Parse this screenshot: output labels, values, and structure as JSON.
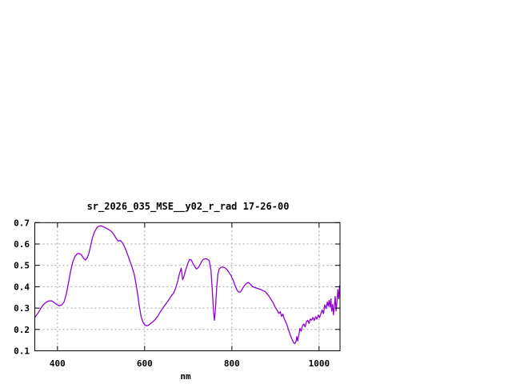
{
  "chart_data": {
    "type": "line",
    "title": "sr_2026_035_MSE__y02_r_rad 17-26-00",
    "xlabel": "nm",
    "ylabel": "",
    "xlim": [
      348,
      1048
    ],
    "ylim": [
      0.1,
      0.7
    ],
    "x_ticks": [
      400,
      600,
      800,
      1000
    ],
    "y_ticks": [
      0.1,
      0.2,
      0.3,
      0.4,
      0.5,
      0.6,
      0.7
    ],
    "grid": true,
    "legend": "none",
    "line_color": "#9400d3",
    "grid_color": "#a0a0a0",
    "background_color": "#ffffff",
    "series": [
      {
        "name": "sr_2026_035_MSE__y02_r_rad",
        "points": [
          [
            349,
            0.258
          ],
          [
            355,
            0.275
          ],
          [
            361,
            0.296
          ],
          [
            367,
            0.315
          ],
          [
            373,
            0.326
          ],
          [
            379,
            0.333
          ],
          [
            386,
            0.334
          ],
          [
            392,
            0.327
          ],
          [
            398,
            0.317
          ],
          [
            404,
            0.311
          ],
          [
            410,
            0.315
          ],
          [
            415,
            0.328
          ],
          [
            420,
            0.362
          ],
          [
            425,
            0.416
          ],
          [
            430,
            0.472
          ],
          [
            435,
            0.515
          ],
          [
            440,
            0.541
          ],
          [
            445,
            0.554
          ],
          [
            450,
            0.556
          ],
          [
            455,
            0.549
          ],
          [
            460,
            0.533
          ],
          [
            464,
            0.525
          ],
          [
            468,
            0.534
          ],
          [
            472,
            0.556
          ],
          [
            476,
            0.592
          ],
          [
            480,
            0.627
          ],
          [
            485,
            0.657
          ],
          [
            490,
            0.675
          ],
          [
            495,
            0.684
          ],
          [
            500,
            0.685
          ],
          [
            505,
            0.681
          ],
          [
            511,
            0.675
          ],
          [
            517,
            0.668
          ],
          [
            523,
            0.66
          ],
          [
            529,
            0.646
          ],
          [
            534,
            0.628
          ],
          [
            539,
            0.614
          ],
          [
            544,
            0.617
          ],
          [
            549,
            0.606
          ],
          [
            554,
            0.586
          ],
          [
            560,
            0.556
          ],
          [
            566,
            0.521
          ],
          [
            571,
            0.493
          ],
          [
            576,
            0.458
          ],
          [
            580,
            0.415
          ],
          [
            584,
            0.364
          ],
          [
            588,
            0.305
          ],
          [
            592,
            0.258
          ],
          [
            596,
            0.235
          ],
          [
            600,
            0.222
          ],
          [
            604,
            0.217
          ],
          [
            608,
            0.219
          ],
          [
            613,
            0.227
          ],
          [
            618,
            0.235
          ],
          [
            624,
            0.246
          ],
          [
            630,
            0.262
          ],
          [
            636,
            0.283
          ],
          [
            642,
            0.301
          ],
          [
            648,
            0.318
          ],
          [
            654,
            0.335
          ],
          [
            660,
            0.354
          ],
          [
            666,
            0.369
          ],
          [
            671,
            0.392
          ],
          [
            676,
            0.428
          ],
          [
            680,
            0.462
          ],
          [
            684,
            0.487
          ],
          [
            687,
            0.433
          ],
          [
            690,
            0.448
          ],
          [
            694,
            0.478
          ],
          [
            699,
            0.509
          ],
          [
            703,
            0.528
          ],
          [
            707,
            0.525
          ],
          [
            711,
            0.508
          ],
          [
            715,
            0.494
          ],
          [
            719,
            0.483
          ],
          [
            723,
            0.489
          ],
          [
            727,
            0.503
          ],
          [
            731,
            0.519
          ],
          [
            735,
            0.529
          ],
          [
            740,
            0.531
          ],
          [
            744,
            0.529
          ],
          [
            748,
            0.522
          ],
          [
            752,
            0.477
          ],
          [
            755,
            0.389
          ],
          [
            758,
            0.28
          ],
          [
            760,
            0.243
          ],
          [
            762,
            0.283
          ],
          [
            765,
            0.392
          ],
          [
            768,
            0.46
          ],
          [
            771,
            0.483
          ],
          [
            775,
            0.491
          ],
          [
            779,
            0.492
          ],
          [
            783,
            0.49
          ],
          [
            788,
            0.482
          ],
          [
            793,
            0.468
          ],
          [
            798,
            0.452
          ],
          [
            803,
            0.43
          ],
          [
            808,
            0.403
          ],
          [
            812,
            0.383
          ],
          [
            816,
            0.374
          ],
          [
            820,
            0.376
          ],
          [
            824,
            0.39
          ],
          [
            829,
            0.406
          ],
          [
            834,
            0.417
          ],
          [
            838,
            0.42
          ],
          [
            843,
            0.411
          ],
          [
            848,
            0.4
          ],
          [
            853,
            0.396
          ],
          [
            859,
            0.392
          ],
          [
            865,
            0.388
          ],
          [
            871,
            0.382
          ],
          [
            877,
            0.376
          ],
          [
            883,
            0.361
          ],
          [
            889,
            0.344
          ],
          [
            895,
            0.324
          ],
          [
            900,
            0.302
          ],
          [
            904,
            0.289
          ],
          [
            908,
            0.275
          ],
          [
            911,
            0.283
          ],
          [
            914,
            0.261
          ],
          [
            917,
            0.272
          ],
          [
            920,
            0.25
          ],
          [
            923,
            0.238
          ],
          [
            926,
            0.224
          ],
          [
            929,
            0.205
          ],
          [
            933,
            0.18
          ],
          [
            937,
            0.158
          ],
          [
            941,
            0.141
          ],
          [
            944,
            0.133
          ],
          [
            947,
            0.142
          ],
          [
            949,
            0.167
          ],
          [
            951,
            0.146
          ],
          [
            954,
            0.179
          ],
          [
            956,
            0.205
          ],
          [
            959,
            0.192
          ],
          [
            962,
            0.218
          ],
          [
            965,
            0.226
          ],
          [
            968,
            0.212
          ],
          [
            971,
            0.236
          ],
          [
            974,
            0.243
          ],
          [
            977,
            0.228
          ],
          [
            980,
            0.249
          ],
          [
            983,
            0.243
          ],
          [
            986,
            0.256
          ],
          [
            989,
            0.242
          ],
          [
            992,
            0.26
          ],
          [
            995,
            0.248
          ],
          [
            998,
            0.267
          ],
          [
            1001,
            0.255
          ],
          [
            1004,
            0.273
          ],
          [
            1007,
            0.291
          ],
          [
            1010,
            0.274
          ],
          [
            1013,
            0.315
          ],
          [
            1016,
            0.298
          ],
          [
            1019,
            0.328
          ],
          [
            1021,
            0.309
          ],
          [
            1023,
            0.336
          ],
          [
            1025,
            0.304
          ],
          [
            1027,
            0.343
          ],
          [
            1029,
            0.286
          ],
          [
            1031,
            0.317
          ],
          [
            1033,
            0.268
          ],
          [
            1035,
            0.31
          ],
          [
            1037,
            0.354
          ],
          [
            1039,
            0.286
          ],
          [
            1041,
            0.329
          ],
          [
            1043,
            0.387
          ],
          [
            1045,
            0.343
          ],
          [
            1047,
            0.404
          ]
        ]
      }
    ]
  }
}
